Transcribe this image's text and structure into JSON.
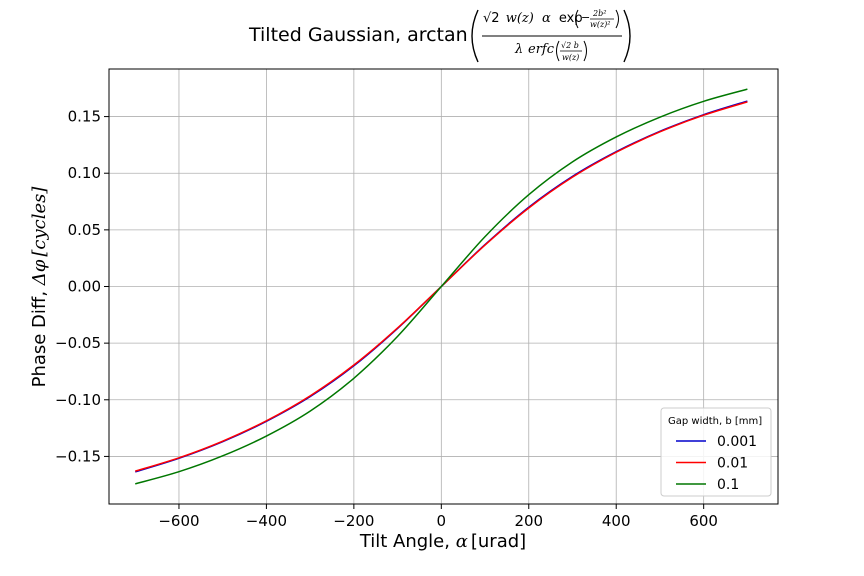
{
  "chart_data": {
    "type": "line",
    "title": {
      "prefix": "Tilted Gaussian, arctan",
      "numerator": [
        "√2",
        "w(z)",
        "α",
        "exp"
      ],
      "exp_arg_minus": "−",
      "exp_arg_num": "2b²",
      "exp_arg_den": "w(z)²",
      "denominator": [
        "λ",
        "erfc"
      ],
      "erfc_num": "√2 b",
      "erfc_den": "w(z)"
    },
    "xlabel": {
      "text": "Tilt Angle, ",
      "symbol": "α",
      "unit": "[urad]"
    },
    "ylabel": {
      "text": "Phase Diff, ",
      "symbol": "Δφ",
      "unit": "[cycles]"
    },
    "xlim": [
      -760,
      770
    ],
    "ylim": [
      -0.192,
      0.192
    ],
    "xticks": [
      -600,
      -400,
      -200,
      0,
      200,
      400,
      600
    ],
    "xtick_labels": [
      "−600",
      "−400",
      "−200",
      "0",
      "200",
      "400",
      "600"
    ],
    "yticks": [
      -0.15,
      -0.1,
      -0.05,
      0.0,
      0.05,
      0.1,
      0.15
    ],
    "ytick_labels": [
      "−0.15",
      "−0.10",
      "−0.05",
      "0.00",
      "0.05",
      "0.10",
      "0.15"
    ],
    "grid": true,
    "legend": {
      "title": "Gap width, b  [mm]",
      "position": "lower-right"
    },
    "x": [
      -700,
      -600,
      -500,
      -400,
      -300,
      -200,
      -100,
      0,
      100,
      200,
      300,
      400,
      500,
      600,
      700
    ],
    "series": [
      {
        "name": "0.001",
        "color": "#0000cc",
        "values": [
          -0.1637,
          -0.1517,
          -0.137,
          -0.119,
          -0.0972,
          -0.07,
          -0.037,
          0.0,
          0.037,
          0.07,
          0.0972,
          0.119,
          0.137,
          0.1517,
          0.1637
        ]
      },
      {
        "name": "0.01",
        "color": "#ff0000",
        "values": [
          -0.163,
          -0.1512,
          -0.1365,
          -0.1185,
          -0.0965,
          -0.0693,
          -0.0366,
          0.0,
          0.0366,
          0.0693,
          0.0965,
          0.1185,
          0.1365,
          0.1512,
          0.163
        ]
      },
      {
        "name": "0.1",
        "color": "#007700",
        "values": [
          -0.1742,
          -0.1635,
          -0.1495,
          -0.132,
          -0.11,
          -0.081,
          -0.044,
          0.0,
          0.044,
          0.081,
          0.11,
          0.132,
          0.1495,
          0.1635,
          0.1742
        ]
      }
    ]
  }
}
